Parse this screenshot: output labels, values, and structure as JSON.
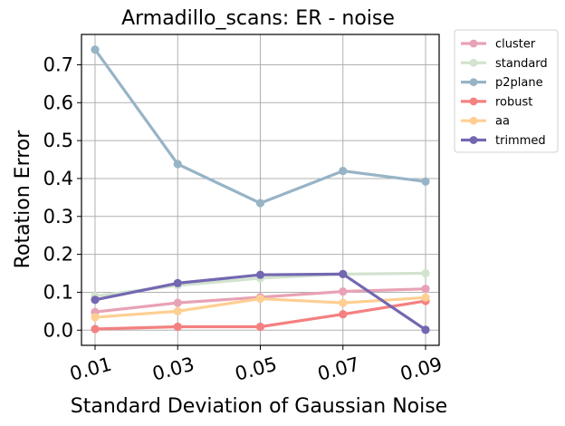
{
  "chart_data": {
    "type": "line",
    "title": "Armadillo_scans: ER - noise",
    "xlabel": "Standard Deviation of Gaussian Noise",
    "ylabel": "Rotation Error",
    "categories": [
      "0.01",
      "0.03",
      "0.05",
      "0.07",
      "0.09"
    ],
    "ylim": [
      -0.04,
      0.78
    ],
    "yticks": [
      0.0,
      0.1,
      0.2,
      0.3,
      0.4,
      0.5,
      0.6,
      0.7
    ],
    "ytick_labels": [
      "0.0",
      "0.1",
      "0.2",
      "0.3",
      "0.4",
      "0.5",
      "0.6",
      "0.7"
    ],
    "grid": true,
    "legend_position": "outside-top-right",
    "series": [
      {
        "name": "cluster",
        "color": "#e8a2b5",
        "values": [
          0.048,
          0.072,
          0.087,
          0.102,
          0.109
        ]
      },
      {
        "name": "standard",
        "color": "#d2e3cf",
        "values": [
          0.09,
          0.118,
          0.137,
          0.148,
          0.15
        ]
      },
      {
        "name": "p2plane",
        "color": "#97b4c6",
        "values": [
          0.74,
          0.438,
          0.335,
          0.42,
          0.392
        ]
      },
      {
        "name": "robust",
        "color": "#f48080",
        "values": [
          0.003,
          0.009,
          0.009,
          0.042,
          0.077
        ]
      },
      {
        "name": "aa",
        "color": "#fecf93",
        "values": [
          0.034,
          0.05,
          0.083,
          0.072,
          0.086
        ]
      },
      {
        "name": "trimmed",
        "color": "#7367b1",
        "values": [
          0.08,
          0.124,
          0.146,
          0.148,
          0.001
        ]
      }
    ]
  }
}
